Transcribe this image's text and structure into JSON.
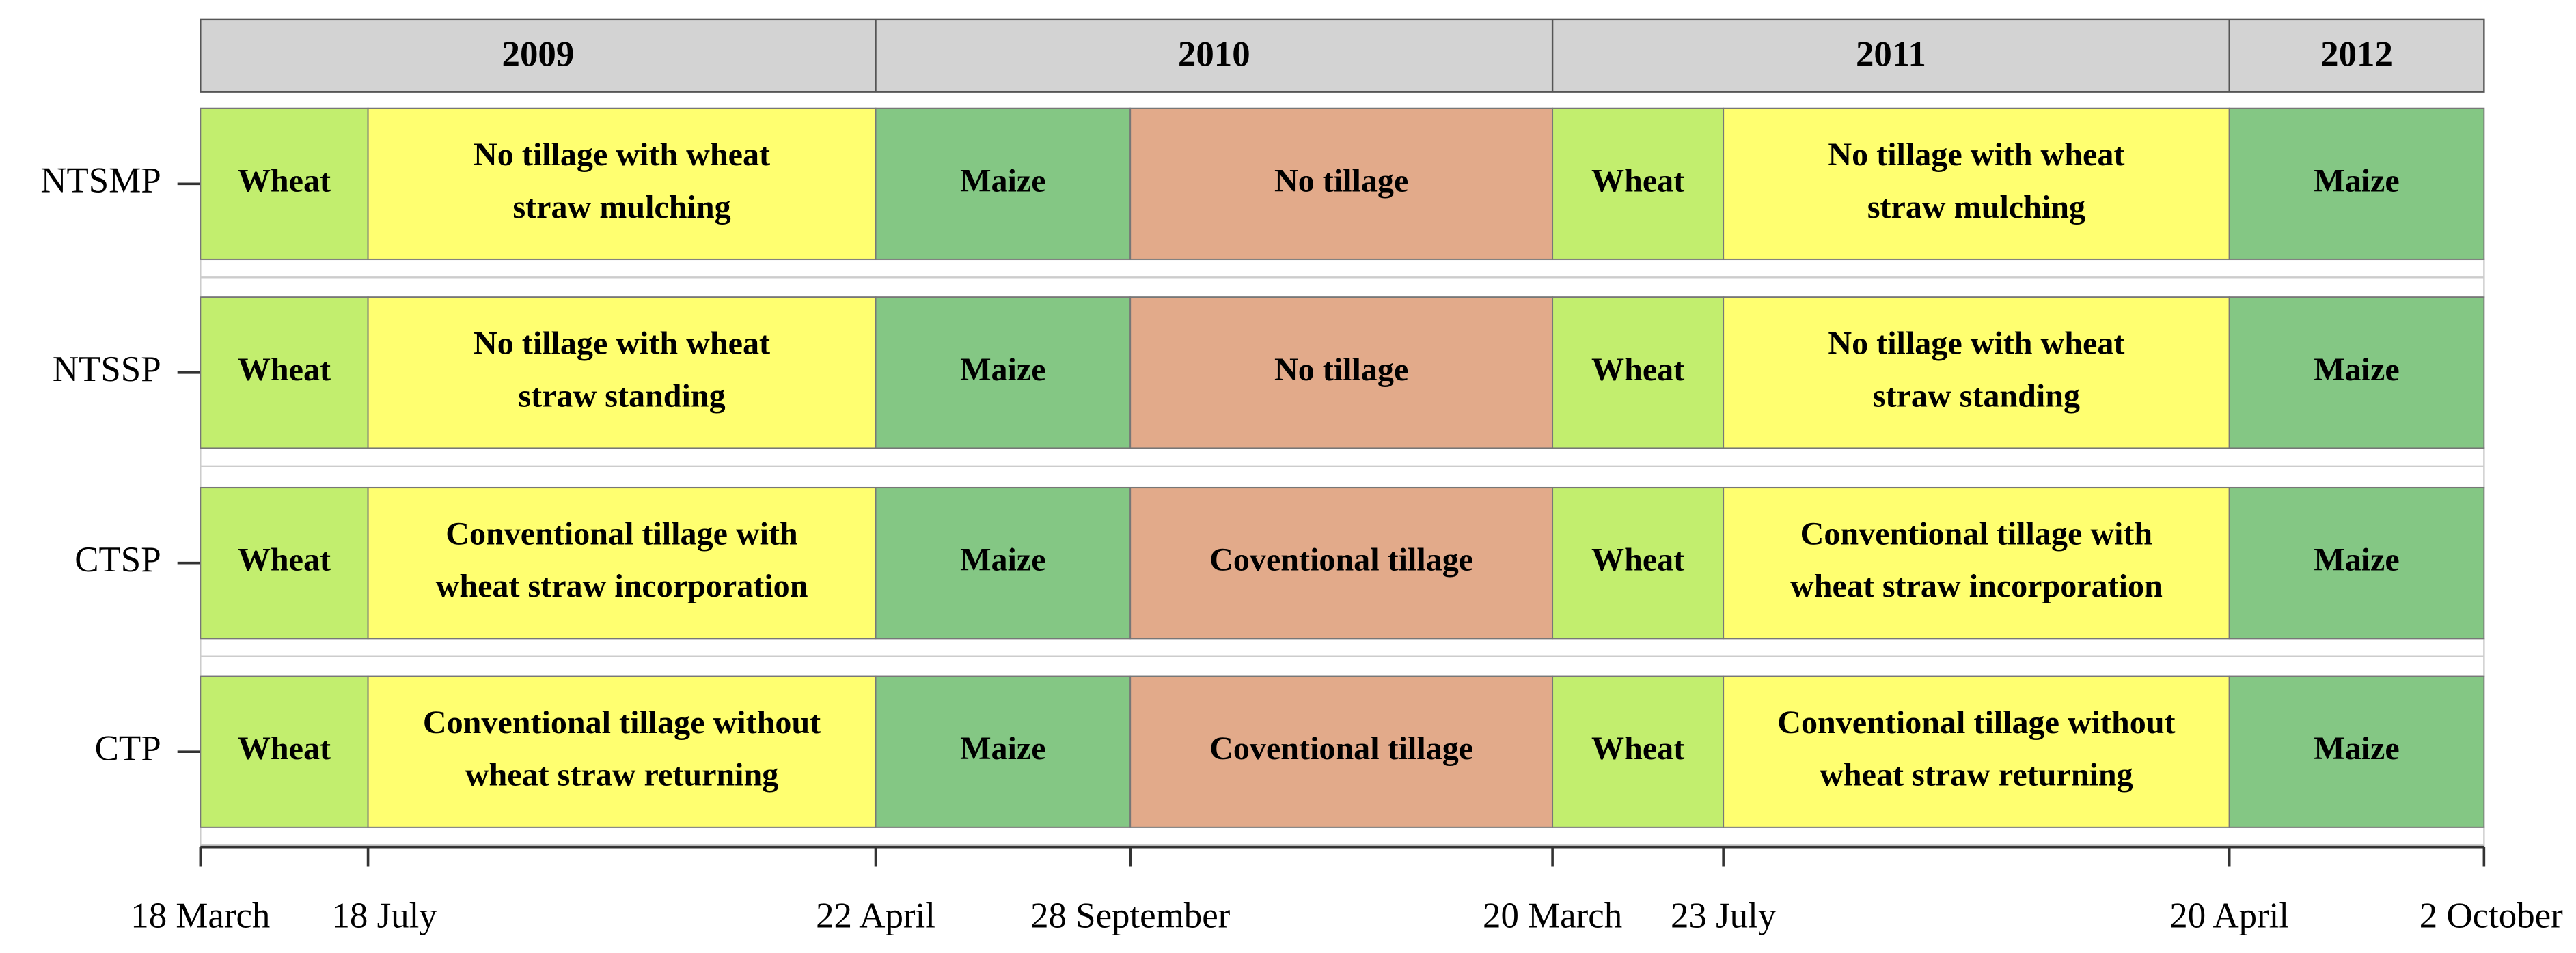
{
  "header": {
    "years": [
      "2009",
      "2010",
      "2011",
      "2012"
    ]
  },
  "rows": [
    {
      "label": "NTSMP",
      "segments": [
        {
          "lines": [
            "Wheat"
          ],
          "color": "#c2ee6e"
        },
        {
          "lines": [
            "No tillage with wheat",
            "straw mulching"
          ],
          "color": "#ffff70"
        },
        {
          "lines": [
            "Maize"
          ],
          "color": "#84c784"
        },
        {
          "lines": [
            "No tillage"
          ],
          "color": "#e2aa8a"
        },
        {
          "lines": [
            "Wheat"
          ],
          "color": "#c2ee6e"
        },
        {
          "lines": [
            "No tillage with wheat",
            "straw mulching"
          ],
          "color": "#ffff70"
        },
        {
          "lines": [
            "Maize"
          ],
          "color": "#84c784"
        }
      ]
    },
    {
      "label": "NTSSP",
      "segments": [
        {
          "lines": [
            "Wheat"
          ],
          "color": "#c2ee6e"
        },
        {
          "lines": [
            "No tillage with wheat",
            "straw standing"
          ],
          "color": "#ffff70"
        },
        {
          "lines": [
            "Maize"
          ],
          "color": "#84c784"
        },
        {
          "lines": [
            "No tillage"
          ],
          "color": "#e2aa8a"
        },
        {
          "lines": [
            "Wheat"
          ],
          "color": "#c2ee6e"
        },
        {
          "lines": [
            "No tillage with wheat",
            "straw standing"
          ],
          "color": "#ffff70"
        },
        {
          "lines": [
            "Maize"
          ],
          "color": "#84c784"
        }
      ]
    },
    {
      "label": "CTSP",
      "segments": [
        {
          "lines": [
            "Wheat"
          ],
          "color": "#c2ee6e"
        },
        {
          "lines": [
            "Conventional tillage with",
            "wheat straw incorporation"
          ],
          "color": "#ffff70"
        },
        {
          "lines": [
            "Maize"
          ],
          "color": "#84c784"
        },
        {
          "lines": [
            "Coventional tillage"
          ],
          "color": "#e2aa8a"
        },
        {
          "lines": [
            "Wheat"
          ],
          "color": "#c2ee6e"
        },
        {
          "lines": [
            "Conventional tillage with",
            "wheat straw incorporation"
          ],
          "color": "#ffff70"
        },
        {
          "lines": [
            "Maize"
          ],
          "color": "#84c784"
        }
      ]
    },
    {
      "label": "CTP",
      "segments": [
        {
          "lines": [
            "Wheat"
          ],
          "color": "#c2ee6e"
        },
        {
          "lines": [
            "Conventional tillage without",
            "wheat straw returning"
          ],
          "color": "#ffff70"
        },
        {
          "lines": [
            "Maize"
          ],
          "color": "#84c784"
        },
        {
          "lines": [
            "Coventional tillage"
          ],
          "color": "#e2aa8a"
        },
        {
          "lines": [
            "Wheat"
          ],
          "color": "#c2ee6e"
        },
        {
          "lines": [
            "Conventional tillage without",
            "wheat straw returning"
          ],
          "color": "#ffff70"
        },
        {
          "lines": [
            "Maize"
          ],
          "color": "#84c784"
        }
      ]
    }
  ],
  "dates": [
    "18 March",
    "18 July",
    "22 April",
    "28 September",
    "20 March",
    "23 July",
    "20 April",
    "2 October"
  ]
}
